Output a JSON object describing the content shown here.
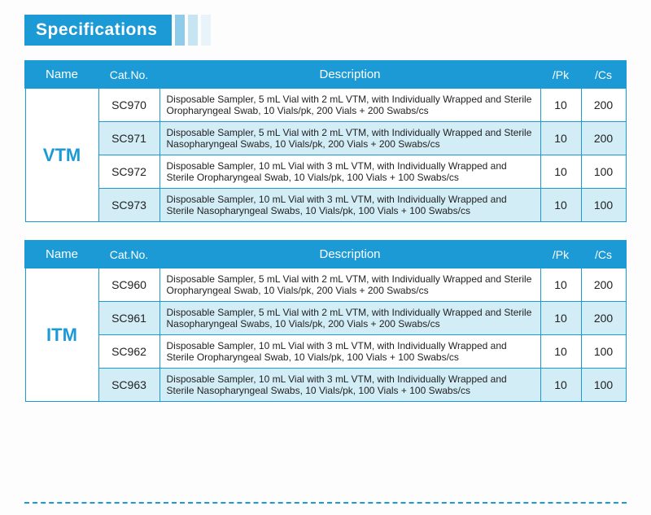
{
  "title": "Specifications",
  "colors": {
    "primary": "#1b9ad6",
    "alt_row": "#d3edf6",
    "text": "#222222",
    "bg": "#fdfdfd"
  },
  "headers": {
    "name": "Name",
    "cat": "Cat.No.",
    "desc": "Description",
    "pk": "/Pk",
    "cs": "/Cs"
  },
  "tables": [
    {
      "group": "VTM",
      "rows": [
        {
          "cat": "SC970",
          "desc": "Disposable Sampler, 5 mL Vial with 2 mL VTM, with Individually Wrapped and Sterile Oropharyngeal Swab, 10 Vials/pk, 200 Vials + 200 Swabs/cs",
          "pk": "10",
          "cs": "200"
        },
        {
          "cat": "SC971",
          "desc": "Disposable Sampler, 5 mL Vial with 2 mL VTM, with Individually Wrapped and Sterile Nasopharyngeal Swabs, 10 Vials/pk, 200 Vials + 200 Swabs/cs",
          "pk": "10",
          "cs": "200"
        },
        {
          "cat": "SC972",
          "desc": "Disposable Sampler, 10 mL Vial with 3 mL VTM, with Individually Wrapped and Sterile Oropharyngeal Swab, 10 Vials/pk, 100 Vials + 100 Swabs/cs",
          "pk": "10",
          "cs": "100"
        },
        {
          "cat": "SC973",
          "desc": "Disposable Sampler, 10 mL Vial with 3 mL VTM, with Individually Wrapped and Sterile Nasopharyngeal Swabs, 10 Vials/pk, 100 Vials + 100 Swabs/cs",
          "pk": "10",
          "cs": "100"
        }
      ]
    },
    {
      "group": "ITM",
      "rows": [
        {
          "cat": "SC960",
          "desc": "Disposable Sampler, 5 mL Vial with 2 mL VTM, with Individually Wrapped and Sterile Oropharyngeal Swab, 10 Vials/pk, 200 Vials + 200 Swabs/cs",
          "pk": "10",
          "cs": "200"
        },
        {
          "cat": "SC961",
          "desc": "Disposable Sampler, 5 mL Vial with 2 mL VTM, with Individually Wrapped and Sterile Nasopharyngeal Swabs, 10 Vials/pk, 200 Vials + 200 Swabs/cs",
          "pk": "10",
          "cs": "200"
        },
        {
          "cat": "SC962",
          "desc": "Disposable Sampler, 10 mL Vial with 3 mL VTM, with Individually Wrapped and Sterile Oropharyngeal Swab, 10 Vials/pk, 100 Vials + 100 Swabs/cs",
          "pk": "10",
          "cs": "100"
        },
        {
          "cat": "SC963",
          "desc": "Disposable Sampler, 10 mL Vial with 3 mL VTM, with Individually Wrapped and Sterile Nasopharyngeal Swabs, 10 Vials/pk, 100 Vials + 100 Swabs/cs",
          "pk": "10",
          "cs": "100"
        }
      ]
    }
  ]
}
